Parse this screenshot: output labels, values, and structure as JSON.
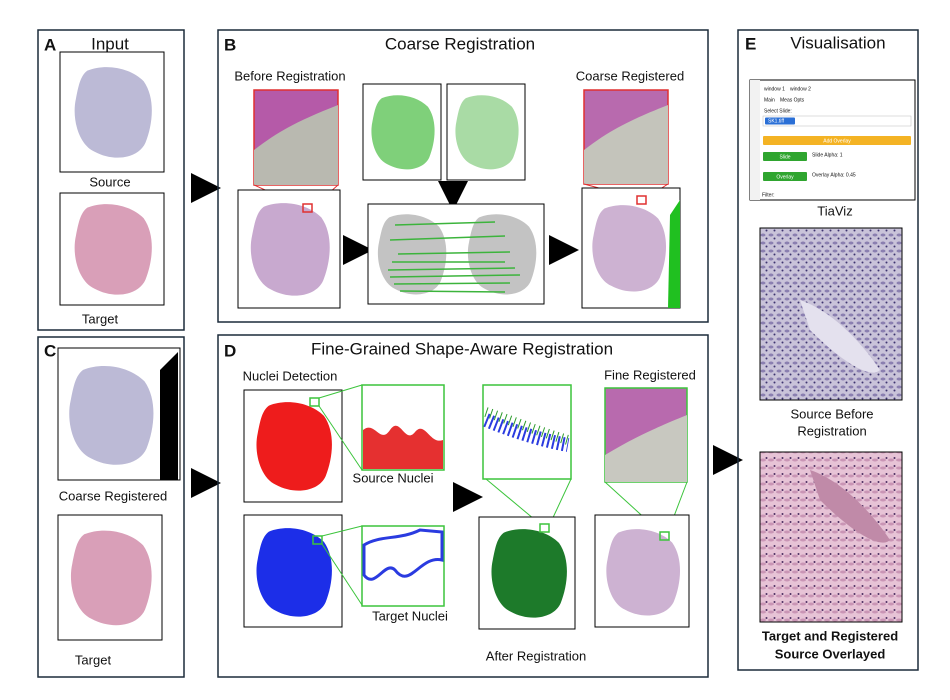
{
  "panels": {
    "a": {
      "letter": "A",
      "title": "Input",
      "source": "Source",
      "target": "Target"
    },
    "b": {
      "letter": "B",
      "title": "Coarse Registration",
      "before": "Before Registration",
      "after": "Coarse Registered"
    },
    "c": {
      "letter": "C",
      "coarse": "Coarse Registered",
      "target": "Target"
    },
    "d": {
      "letter": "D",
      "title": "Fine-Grained Shape-Aware Registration",
      "detection": "Nuclei Detection",
      "source_nuclei": "Source Nuclei",
      "target_nuclei": "Target Nuclei",
      "after": "After Registration",
      "fine": "Fine Registered"
    },
    "e": {
      "letter": "E",
      "title": "Visualisation",
      "tool": "TiaViz",
      "source_before": [
        "Source Before",
        "Registration"
      ],
      "overlay": [
        "Target and Registered",
        "Source Overlayed"
      ],
      "ui": {
        "tab1": "window 1",
        "tab2": "window 2",
        "menu1": "Main",
        "menu2": "Meas Opts",
        "select": "Select Slide:",
        "slide_file": "SK1.tiff",
        "add_overlay": "Add Overlay",
        "slide_btn": "Slide",
        "slide_alpha": "Slide Alpha: 1",
        "overlay_btn": "Overlay",
        "overlay_alpha": "Overlay Alpha: 0.45",
        "filter": "Filter:"
      }
    }
  }
}
